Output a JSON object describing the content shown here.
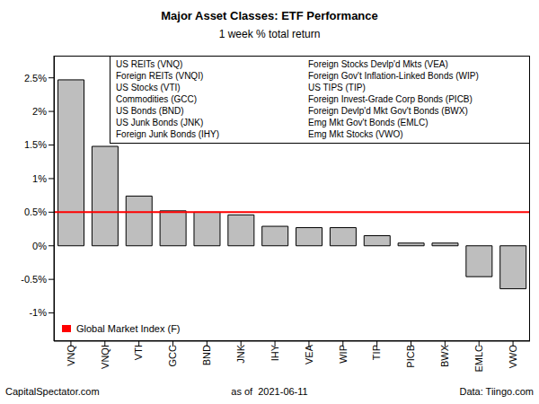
{
  "chart_data": {
    "type": "bar",
    "title": "Major Asset Classes: ETF Performance",
    "subtitle": "1 week % total return",
    "categories": [
      "VNQ",
      "VNQI",
      "VTI",
      "GCC",
      "BND",
      "JNK",
      "IHY",
      "VEA",
      "WIP",
      "TIP",
      "PICB",
      "BWX",
      "EMLC",
      "VWO"
    ],
    "values": [
      2.47,
      1.48,
      0.74,
      0.52,
      0.5,
      0.46,
      0.29,
      0.27,
      0.27,
      0.15,
      0.04,
      0.04,
      -0.46,
      -0.64
    ],
    "color": "#bebebe",
    "ylim": [
      -1.42,
      2.83
    ],
    "yticks": [
      {
        "value": -1,
        "label": "-1%"
      },
      {
        "value": -0.5,
        "label": "-0.5%"
      },
      {
        "value": 0,
        "label": "0%"
      },
      {
        "value": 0.5,
        "label": "0.5%"
      },
      {
        "value": 1,
        "label": "1%"
      },
      {
        "value": 1.5,
        "label": "1.5%"
      },
      {
        "value": 2,
        "label": "2%"
      },
      {
        "value": 2.5,
        "label": "2.5%"
      }
    ],
    "grid": false,
    "legend": "bottom left",
    "reference_lines": [
      {
        "name": "Global Market Index (F)",
        "value": 0.5,
        "color": "#ff0000"
      }
    ],
    "annotations": {
      "key": [
        "US REITs (VNQ)",
        "Foreign REITs (VNQI)",
        "US Stocks (VTI)",
        "Commodities (GCC)",
        "US Bonds (BND)",
        "US Junk Bonds (JNK)",
        "Foreign Junk Bonds (IHY)",
        "Foreign Stocks Devlp'd Mkts (VEA)",
        "Foreign Gov't Inflation-Linked Bonds (WIP)",
        "US TIPS (TIP)",
        "Foreign Invest-Grade Corp Bonds (PICB)",
        "Foreign Devlp'd Mkt Gov't Bonds (BWX)",
        "Emg Mkt Gov't Bonds (EMLC)",
        "Emg Mkt Stocks (VWO)"
      ],
      "footer": [
        "CapitalSpectator.com",
        "as of  2021-06-11",
        "Data: Tiingo.com"
      ]
    }
  }
}
